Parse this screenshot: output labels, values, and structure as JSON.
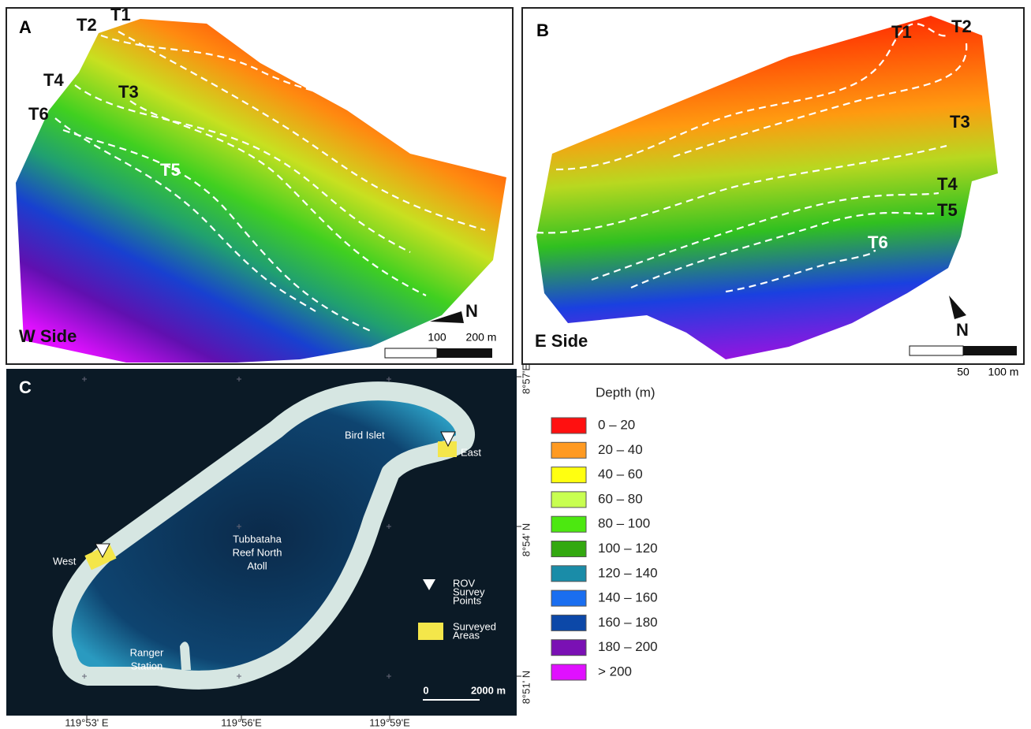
{
  "panel_a": {
    "label": "A",
    "transects": [
      "T1",
      "T2",
      "T3",
      "T4",
      "T5",
      "T6"
    ],
    "side": "W Side",
    "north": "N",
    "scale": [
      "100",
      "200 m"
    ]
  },
  "panel_b": {
    "label": "B",
    "transects": [
      "T1",
      "T2",
      "T3",
      "T4",
      "T5",
      "T6"
    ],
    "side": "E Side",
    "north": "N",
    "scale": [
      "50",
      "100 m"
    ]
  },
  "panel_c": {
    "label": "C",
    "bird_islet": "Bird Islet",
    "east": "East",
    "west": "West",
    "atoll_name": [
      "Tubbataha",
      "Reef North",
      "Atoll"
    ],
    "ranger_station": [
      "Ranger",
      "Station"
    ],
    "rov_key": [
      "ROV",
      "Survey",
      "Points"
    ],
    "areas_key": [
      "Surveyed",
      "Areas"
    ],
    "scale": [
      "0",
      "2000 m"
    ],
    "longitudes": [
      "119°53' E",
      "119°56'E",
      "119°59'E"
    ],
    "latitudes": [
      "8°57'E",
      "8°54' N",
      "8°51' N"
    ]
  },
  "legend": {
    "title": "Depth (m)",
    "items": [
      {
        "label": "0 – 20",
        "color": "#ff1010"
      },
      {
        "label": "20 – 40",
        "color": "#ff9a22"
      },
      {
        "label": "40 – 60",
        "color": "#ffff10"
      },
      {
        "label": "60 – 80",
        "color": "#c8ff50"
      },
      {
        "label": "80 – 100",
        "color": "#4ce810"
      },
      {
        "label": "100 – 120",
        "color": "#33a810"
      },
      {
        "label": "120 – 140",
        "color": "#1a8ca8"
      },
      {
        "label": "140 – 160",
        "color": "#1a6ef0"
      },
      {
        "label": "160 – 180",
        "color": "#0c48a8"
      },
      {
        "label": "180 – 200",
        "color": "#7a10b4"
      },
      {
        "label": "> 200",
        "color": "#e010ff"
      }
    ]
  }
}
